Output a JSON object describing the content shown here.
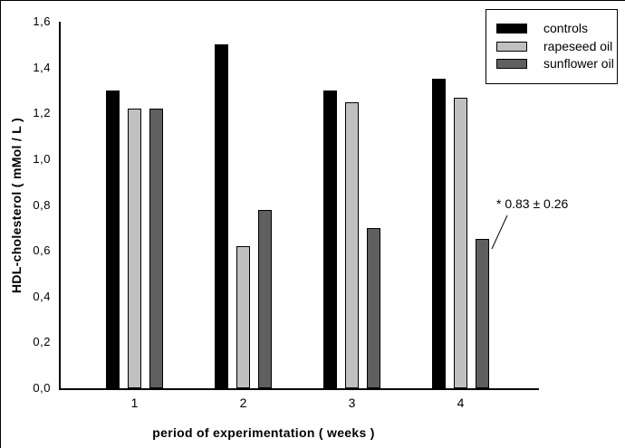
{
  "chart_data": {
    "type": "bar",
    "title": "",
    "xlabel": "period of experimentation ( weeks )",
    "ylabel": "HDL-cholesterol ( mMol / L )",
    "categories": [
      "1",
      "2",
      "3",
      "4"
    ],
    "series": [
      {
        "name": "controls",
        "color": "#000000",
        "values": [
          1.3,
          1.5,
          1.3,
          1.35
        ]
      },
      {
        "name": "rapeseed oil",
        "color": "#c0c0c0",
        "values": [
          1.22,
          0.62,
          1.25,
          1.27
        ]
      },
      {
        "name": "sunflower oil",
        "color": "#5f5f5f",
        "values": [
          1.22,
          0.78,
          0.7,
          0.65
        ]
      }
    ],
    "ylim": [
      0.0,
      1.6
    ],
    "ytick_step": 0.2,
    "ytick_labels": [
      "0,0",
      "0,2",
      "0,4",
      "0,6",
      "0,8",
      "1,0",
      "1,2",
      "1,4",
      "1,6"
    ],
    "grid": false,
    "legend_position": "top-right",
    "annotation": {
      "text": "* 0.83 ± 0.26"
    },
    "colors": {
      "axis": "#000000",
      "background": "#ffffff"
    }
  }
}
